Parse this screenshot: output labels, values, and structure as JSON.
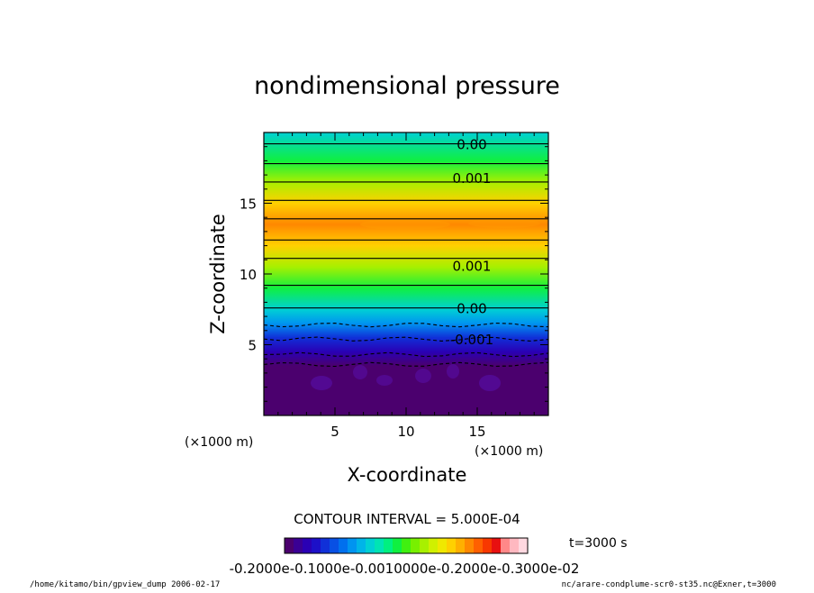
{
  "chart_data": {
    "type": "heatmap",
    "title": "nondimensional pressure",
    "xlabel": "X-coordinate",
    "ylabel": "Z-coordinate",
    "x_unit": "(×1000 m)",
    "y_unit": "(×1000 m)",
    "xlim": [
      0,
      20
    ],
    "ylim": [
      0,
      20
    ],
    "x_ticks": [
      "5",
      "10",
      "15"
    ],
    "y_ticks": [
      "5",
      "10",
      "15"
    ],
    "x_tick_values": [
      5,
      10,
      15
    ],
    "y_tick_values": [
      5,
      10,
      15
    ],
    "contour_interval_text": "CONTOUR INTERVAL = 5.000E-04",
    "contour_labels": [
      {
        "text": "0.00",
        "z": 19.2
      },
      {
        "text": "0.001",
        "z": 16.8
      },
      {
        "text": "0.001",
        "z": 10.6
      },
      {
        "text": "0.00",
        "z": 7.6
      },
      {
        "text": "-0.001",
        "z": 5.4
      }
    ],
    "contour_lines_solid_z": [
      19.2,
      17.8,
      16.5,
      15.2,
      13.9,
      12.4,
      11.1,
      9.2,
      7.6
    ],
    "contour_lines_dashed_z": [
      6.4,
      5.4,
      4.3,
      3.6
    ],
    "vertical_profile": [
      {
        "z": 0,
        "value": -0.002
      },
      {
        "z": 3.5,
        "value": -0.002
      },
      {
        "z": 4.5,
        "value": -0.0016
      },
      {
        "z": 5.5,
        "value": -0.0011
      },
      {
        "z": 6.5,
        "value": -0.0004
      },
      {
        "z": 7.5,
        "value": 0.0
      },
      {
        "z": 9.0,
        "value": 0.0007
      },
      {
        "z": 10.5,
        "value": 0.0013
      },
      {
        "z": 12.0,
        "value": 0.0019
      },
      {
        "z": 13.5,
        "value": 0.0024
      },
      {
        "z": 15.0,
        "value": 0.0019
      },
      {
        "z": 16.5,
        "value": 0.0012
      },
      {
        "z": 18.0,
        "value": 0.0005
      },
      {
        "z": 20.0,
        "value": -0.0001
      }
    ],
    "colorbar": {
      "vmin": -0.002,
      "vmax": 0.003,
      "label_text": "-0.2000e-0.1000e-0.0010000e-0.2000e-0.3000e-02",
      "colors": [
        "#4b006e",
        "#3a0094",
        "#2a00b4",
        "#1c10c8",
        "#1030d8",
        "#0850e4",
        "#0070ee",
        "#0094f0",
        "#00b4e8",
        "#00d0d4",
        "#00e4b4",
        "#00f080",
        "#10f040",
        "#40f010",
        "#78f000",
        "#a8f000",
        "#d0f000",
        "#f0e800",
        "#ffd000",
        "#ffb000",
        "#ff8800",
        "#ff6000",
        "#f83800",
        "#e81010",
        "#ff8888",
        "#ffb8c0",
        "#ffd8e0"
      ]
    },
    "time_label": "t=3000 s"
  },
  "footer": {
    "left": "/home/kitamo/bin/gpview_dump  2006-02-17",
    "right": "nc/arare-condplume-scr0-st35.nc@Exner,t=3000"
  }
}
